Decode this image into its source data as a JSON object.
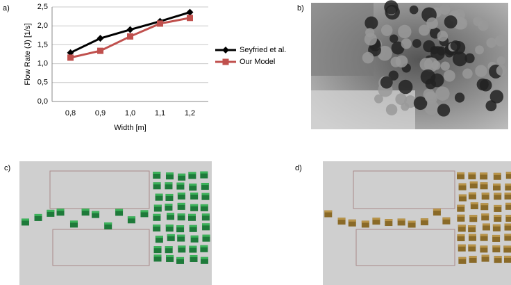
{
  "panel_labels": {
    "a": "a)",
    "b": "b)",
    "c": "c)",
    "d": "d)"
  },
  "chart_data": {
    "type": "line",
    "categories": [
      "0,8",
      "0,9",
      "1,0",
      "1,1",
      "1,2"
    ],
    "series": [
      {
        "name": "Seyfried et al.",
        "color": "#000000",
        "marker": "diamond",
        "values": [
          1.29,
          1.67,
          1.9,
          2.12,
          2.36
        ]
      },
      {
        "name": "Our Model",
        "color": "#c0504d",
        "marker": "square",
        "values": [
          1.16,
          1.34,
          1.72,
          2.06,
          2.21
        ]
      }
    ],
    "xlabel": "Width [m]",
    "ylabel": "Flow Rate (J) [1/s]",
    "ylim": [
      0,
      2.5
    ],
    "yticks": [
      {
        "value": 0,
        "label": "0,0"
      },
      {
        "value": 0.5,
        "label": "0,5"
      },
      {
        "value": 1,
        "label": "1,0"
      },
      {
        "value": 1.5,
        "label": "1,5"
      },
      {
        "value": 2,
        "label": "2,0"
      },
      {
        "value": 2.5,
        "label": "2,5"
      }
    ],
    "grid": true
  }
}
